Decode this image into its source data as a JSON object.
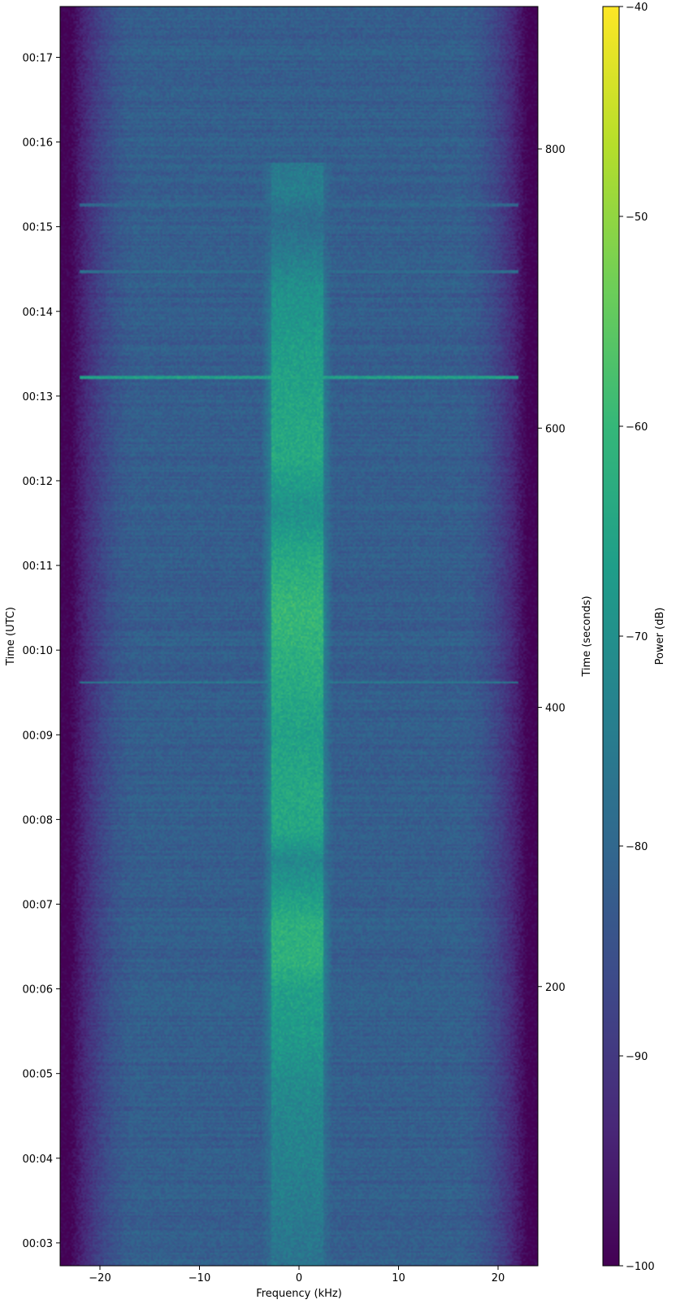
{
  "chart_data": {
    "type": "heatmap",
    "title": "",
    "xlabel": "Frequency (kHz)",
    "ylabel_left": "Time (UTC)",
    "ylabel_right": "Time (seconds)",
    "colorbar_label": "Power (dB)",
    "colormap": "viridis",
    "colormap_stops": [
      "#440154",
      "#482878",
      "#3e4989",
      "#31688e",
      "#26828e",
      "#1f9e89",
      "#35b779",
      "#6ece58",
      "#b5de2b",
      "#fde725"
    ],
    "xlim": [
      -24,
      24
    ],
    "x_ticks": [
      -20,
      -10,
      0,
      10,
      20
    ],
    "x_tick_labels": [
      "−20",
      "−10",
      "0",
      "10",
      "20"
    ],
    "time_axis_utc": {
      "range_minutes": [
        2.73,
        17.6
      ],
      "ticks": [
        {
          "minute": 3,
          "label": "00:03"
        },
        {
          "minute": 4,
          "label": "00:04"
        },
        {
          "minute": 5,
          "label": "00:05"
        },
        {
          "minute": 6,
          "label": "00:06"
        },
        {
          "minute": 7,
          "label": "00:07"
        },
        {
          "minute": 8,
          "label": "00:08"
        },
        {
          "minute": 9,
          "label": "00:09"
        },
        {
          "minute": 10,
          "label": "00:10"
        },
        {
          "minute": 11,
          "label": "00:11"
        },
        {
          "minute": 12,
          "label": "00:12"
        },
        {
          "minute": 13,
          "label": "00:13"
        },
        {
          "minute": 14,
          "label": "00:14"
        },
        {
          "minute": 15,
          "label": "00:15"
        },
        {
          "minute": 16,
          "label": "00:16"
        },
        {
          "minute": 17,
          "label": "00:17"
        }
      ]
    },
    "time_axis_seconds": {
      "range": [
        0,
        902
      ],
      "ticks": [
        200,
        400,
        600,
        800
      ],
      "tick_labels": [
        "200",
        "400",
        "600",
        "800"
      ]
    },
    "colorbar": {
      "range": [
        -100,
        -40
      ],
      "ticks": [
        -100,
        -90,
        -80,
        -70,
        -60,
        -50,
        -40
      ],
      "tick_labels": [
        "−100",
        "−90",
        "−80",
        "−70",
        "−60",
        "−50",
        "−40"
      ]
    },
    "noise_floor_db": -82,
    "band_edge_db": -100,
    "passband_edge_khz": 22,
    "signal": {
      "center_khz": -0.2,
      "half_width_khz": 2.6,
      "start_s": 0,
      "end_s": 790,
      "power_profile_db": [
        {
          "t": 0,
          "db": -77
        },
        {
          "t": 60,
          "db": -74
        },
        {
          "t": 120,
          "db": -72
        },
        {
          "t": 160,
          "db": -68
        },
        {
          "t": 200,
          "db": -66
        },
        {
          "t": 215,
          "db": -62
        },
        {
          "t": 245,
          "db": -62
        },
        {
          "t": 270,
          "db": -68
        },
        {
          "t": 290,
          "db": -72
        },
        {
          "t": 310,
          "db": -65
        },
        {
          "t": 340,
          "db": -64
        },
        {
          "t": 380,
          "db": -66
        },
        {
          "t": 420,
          "db": -63
        },
        {
          "t": 470,
          "db": -60
        },
        {
          "t": 510,
          "db": -64
        },
        {
          "t": 540,
          "db": -70
        },
        {
          "t": 580,
          "db": -64
        },
        {
          "t": 620,
          "db": -65
        },
        {
          "t": 660,
          "db": -67
        },
        {
          "t": 700,
          "db": -70
        },
        {
          "t": 730,
          "db": -76
        },
        {
          "t": 750,
          "db": -79
        },
        {
          "t": 770,
          "db": -74
        },
        {
          "t": 790,
          "db": -76
        }
      ]
    },
    "horizontal_interference_lines": [
      {
        "t": 636,
        "db": -66
      },
      {
        "t": 418,
        "db": -75
      },
      {
        "t": 760,
        "db": -80
      },
      {
        "t": 712,
        "db": -79
      }
    ]
  }
}
